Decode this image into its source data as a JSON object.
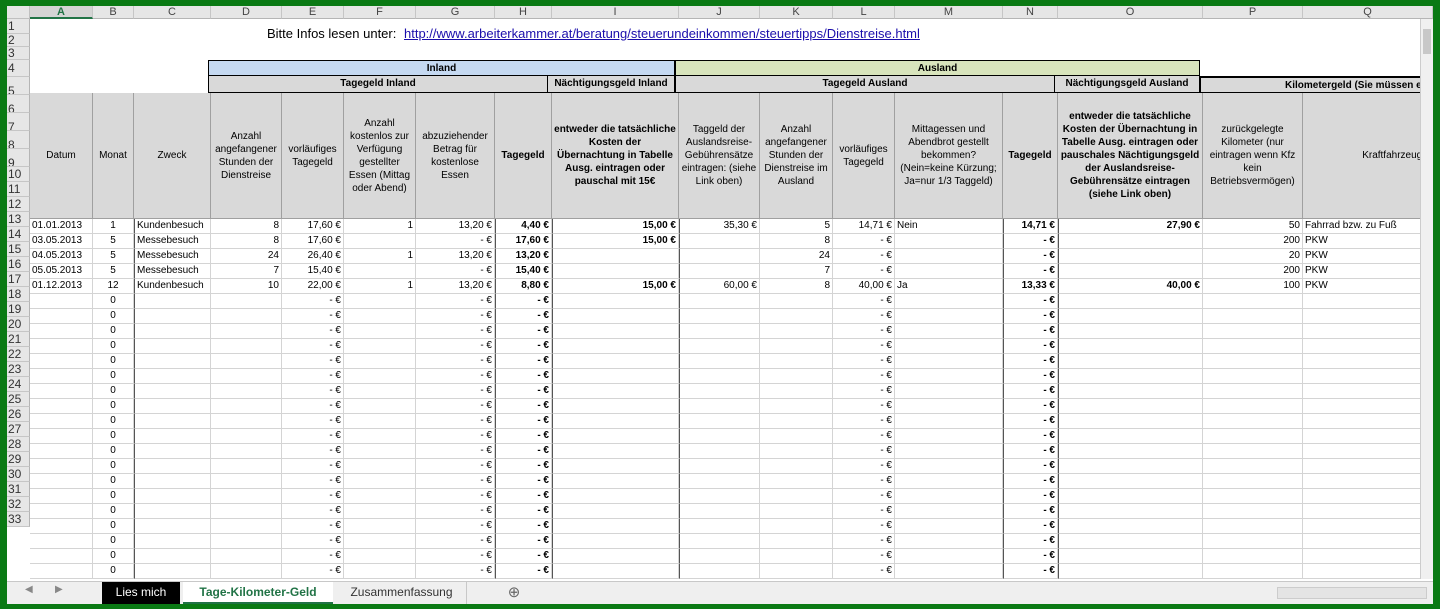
{
  "columns": [
    "A",
    "B",
    "C",
    "D",
    "E",
    "F",
    "G",
    "H",
    "I",
    "J",
    "K",
    "L",
    "M",
    "N",
    "O",
    "P",
    "Q"
  ],
  "selected_column": "A",
  "row_numbers": [
    "1",
    "2",
    "3",
    "4",
    "5",
    "6",
    "7",
    "8",
    "9",
    "10",
    "11",
    "12",
    "13",
    "14",
    "15",
    "16",
    "17",
    "18",
    "19",
    "20",
    "21",
    "22",
    "23",
    "24",
    "25",
    "26",
    "27",
    "28",
    "29",
    "30",
    "31",
    "32",
    "33"
  ],
  "info": {
    "label": "Bitte Infos lesen unter:",
    "link": "http://www.arbeiterkammer.at/beratung/steuerundeinkommen/steuertipps/Dienstreise.html"
  },
  "banners": {
    "inland": "Inland",
    "ausland": "Ausland"
  },
  "subheaders": {
    "tagegeld_inland": "Tagegeld Inland",
    "naechtigung_inland": "Nächtigungsgeld Inland",
    "tagegeld_ausland": "Tagegeld Ausland",
    "naechtigung_ausland": "Nächtigungsgeld Ausland",
    "kilometergeld": "Kilometergeld (Sie müssen ei"
  },
  "headers": {
    "datum": "Datum",
    "monat": "Monat",
    "zweck": "Zweck",
    "stunden": "Anzahl angefangener Stunden der Dienstreise",
    "vorl_tagegeld": "vorläufiges Tagegeld",
    "essen": "Anzahl kostenlos zur Verfügung gestellter Essen (Mittag oder Abend)",
    "abzug": "abzuziehender Betrag für kostenlose Essen",
    "tagegeld": "Tagegeld",
    "naecht_inland": "entweder die tatsächliche Kosten der Übernachtung in Tabelle Ausg. eintragen oder pauschal mit 15€",
    "taggeld_ausland": "Taggeld der Auslandsreise-Gebührensätze eintragen: (siehe Link oben)",
    "stunden_ausland": "Anzahl angefangener Stunden der Dienstreise im Ausland",
    "vorl_tagegeld_ausland": "vorläufiges Tagegeld",
    "mittagessen": "Mittagessen und Abendbrot gestellt bekommen? (Nein=keine Kürzung; Ja=nur 1/3 Taggeld)",
    "tagegeld_ausland": "Tagegeld",
    "naecht_ausland": "entweder die tatsächliche Kosten der Übernachtung in Tabelle Ausg. eintragen oder pauschales Nächtigungsgeld der Auslandsreise-Gebührensätze eintragen (siehe Link oben)",
    "km": "zurückgelegte Kilometer (nur eintragen wenn Kfz kein Betriebsvermögen)",
    "kfz": "Kraftfahrzeugty"
  },
  "rows": [
    {
      "A": "01.01.2013",
      "B": "1",
      "C": "Kundenbesuch",
      "D": "8",
      "E": "17,60 €",
      "F": "1",
      "G": "13,20 €",
      "H": "4,40 €",
      "I": "15,00 €",
      "J": "35,30 €",
      "K": "5",
      "L": "14,71 €",
      "M": "Nein",
      "N": "14,71 €",
      "O": "27,90 €",
      "P": "50",
      "Q": "Fahrrad bzw. zu Fuß"
    },
    {
      "A": "03.05.2013",
      "B": "5",
      "C": "Messebesuch",
      "D": "8",
      "E": "17,60 €",
      "F": "",
      "G": "-   €",
      "H": "17,60 €",
      "I": "15,00 €",
      "J": "",
      "K": "8",
      "L": "-   €",
      "M": "",
      "N": "-   €",
      "O": "",
      "P": "200",
      "Q": "PKW"
    },
    {
      "A": "04.05.2013",
      "B": "5",
      "C": "Messebesuch",
      "D": "24",
      "E": "26,40 €",
      "F": "1",
      "G": "13,20 €",
      "H": "13,20 €",
      "I": "",
      "J": "",
      "K": "24",
      "L": "-   €",
      "M": "",
      "N": "-   €",
      "O": "",
      "P": "20",
      "Q": "PKW"
    },
    {
      "A": "05.05.2013",
      "B": "5",
      "C": "Messebesuch",
      "D": "7",
      "E": "15,40 €",
      "F": "",
      "G": "-   €",
      "H": "15,40 €",
      "I": "",
      "J": "",
      "K": "7",
      "L": "-   €",
      "M": "",
      "N": "-   €",
      "O": "",
      "P": "200",
      "Q": "PKW"
    },
    {
      "A": "01.12.2013",
      "B": "12",
      "C": "Kundenbesuch",
      "D": "10",
      "E": "22,00 €",
      "F": "1",
      "G": "13,20 €",
      "H": "8,80 €",
      "I": "15,00 €",
      "J": "60,00 €",
      "K": "8",
      "L": "40,00 €",
      "M": "Ja",
      "N": "13,33 €",
      "O": "40,00 €",
      "P": "100",
      "Q": "PKW"
    }
  ],
  "empty_row": {
    "B": "0",
    "E": "-   €",
    "G": "-   €",
    "H": "-   €",
    "L": "-   €",
    "N": "-   €"
  },
  "sheet_tabs": [
    "Lies mich",
    "Tage-Kilometer-Geld",
    "Zusammenfassung"
  ],
  "add_sheet": "⊕",
  "active_tab": "Tage-Kilometer-Geld"
}
